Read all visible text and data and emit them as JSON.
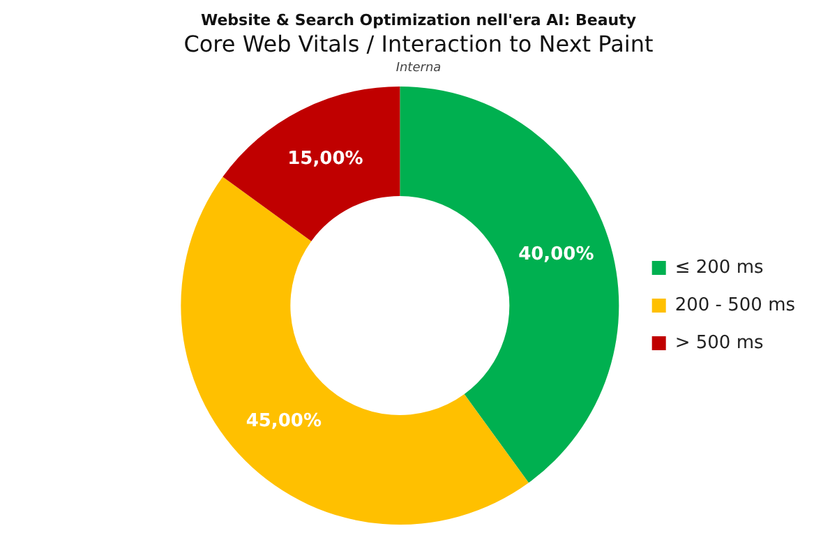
{
  "chart_data": {
    "type": "donut",
    "subtitle": "Website & Search Optimization nell'era AI: Beauty",
    "title": "Core Web Vitals / Interaction to Next Paint",
    "annotations": [
      "Interna"
    ],
    "categories": [
      "≤ 200 ms",
      "200 - 500 ms",
      "> 500 ms"
    ],
    "values": [
      40,
      45,
      15
    ],
    "colors": [
      "#00b050",
      "#ffc000",
      "#c00000"
    ],
    "value_labels": [
      "40,00%",
      "45,00%",
      "15,00%"
    ],
    "legend": "right"
  }
}
